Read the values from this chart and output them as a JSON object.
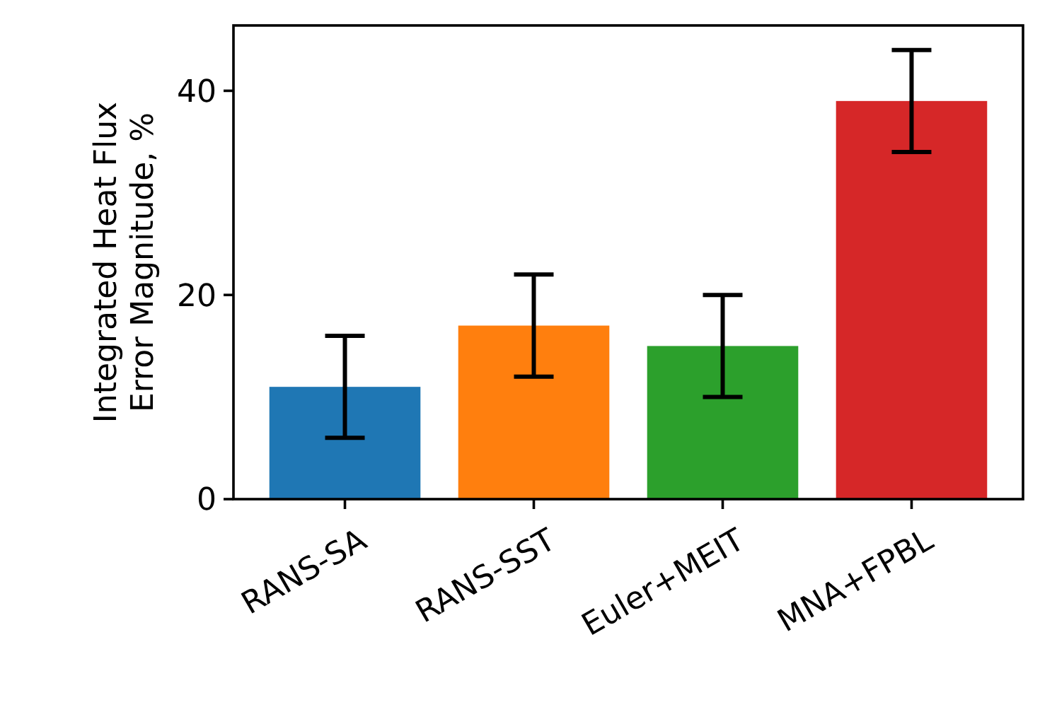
{
  "chart_data": {
    "type": "bar",
    "ylabel": "Integrated Heat Flux\nError Magnitude, %",
    "categories": [
      "RANS-SA",
      "RANS-SST",
      "Euler+MEIT",
      "MNA+FPBL"
    ],
    "values": [
      11,
      17,
      15,
      39
    ],
    "colors": [
      "#1f77b4",
      "#ff7f0e",
      "#2ca02c",
      "#d62728"
    ],
    "errors": [
      5,
      5,
      5,
      5
    ],
    "ylim": [
      0,
      46.4
    ],
    "yticks": [
      0,
      20,
      40
    ],
    "grid": false
  }
}
